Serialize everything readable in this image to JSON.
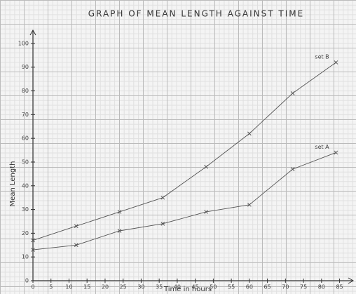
{
  "chart_data": {
    "type": "line",
    "title": "GRAPH OF MEAN LENGTH AGAINST TIME",
    "x_label": "Time in hours",
    "y_label": "Mean Length",
    "x": [
      0,
      12,
      24,
      36,
      48,
      60,
      72,
      84
    ],
    "series": [
      {
        "name": "set A",
        "color": "#555555",
        "values": [
          13,
          15,
          21,
          24,
          29,
          32,
          47,
          54
        ]
      },
      {
        "name": "set B",
        "color": "#555555",
        "values": [
          17,
          23,
          29,
          35,
          48,
          62,
          79,
          92
        ]
      }
    ],
    "xlim": [
      0,
      88
    ],
    "ylim": [
      0,
      105
    ],
    "xticks": [
      0,
      5,
      10,
      15,
      20,
      25,
      30,
      35,
      40,
      45,
      50,
      55,
      60,
      65,
      70,
      75,
      80,
      85
    ],
    "yticks": [
      0,
      10,
      20,
      30,
      40,
      50,
      60,
      70,
      80,
      90,
      100
    ],
    "grid": true
  }
}
